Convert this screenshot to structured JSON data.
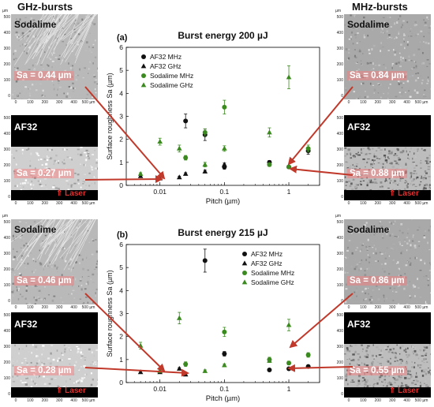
{
  "headers": {
    "left": "GHz-bursts",
    "right": "MHz-bursts"
  },
  "micro_units": {
    "unit": "µm",
    "ticks": [
      "0",
      "100",
      "200",
      "300",
      "400",
      "500 µm"
    ],
    "y_ticks": [
      "500",
      "400",
      "300",
      "200",
      "100",
      "0"
    ]
  },
  "micrographs": [
    {
      "id": "ghz-top-soda",
      "material": "Sodalime",
      "sa": "Sa = 0.44 µm",
      "laser": ""
    },
    {
      "id": "ghz-top-af32",
      "material": "AF32",
      "sa": "Sa = 0.27 µm",
      "laser": "Laser"
    },
    {
      "id": "mhz-top-soda",
      "material": "Sodalime",
      "sa": "Sa = 0.84 µm",
      "laser": ""
    },
    {
      "id": "mhz-top-af32",
      "material": "AF32",
      "sa": "Sa = 0.88 µm",
      "laser": "Laser"
    },
    {
      "id": "ghz-bot-soda",
      "material": "Sodalime",
      "sa": "Sa = 0.46 µm",
      "laser": ""
    },
    {
      "id": "ghz-bot-af32",
      "material": "AF32",
      "sa": "Sa = 0.28 µm",
      "laser": "Laser"
    },
    {
      "id": "mhz-bot-soda",
      "material": "Sodalime",
      "sa": "Sa = 0.86 µm",
      "laser": ""
    },
    {
      "id": "mhz-bot-af32",
      "material": "AF32",
      "sa": "Sa = 0.55 µm",
      "laser": "Laser"
    }
  ],
  "colors": {
    "af32": "#111111",
    "sodalime": "#3b8a1f",
    "arrow": "#c0392b",
    "sa_bg": "#ff7a7a"
  },
  "chart_data": [
    {
      "type": "scatter",
      "panel_label": "(a)",
      "title": "Burst energy 200 µJ",
      "xlabel": "Pitch (µm)",
      "ylabel": "Surface roughness Sa (µm)",
      "xscale": "log",
      "xlim": [
        0.003,
        3
      ],
      "ylim": [
        0,
        6
      ],
      "xticks": [
        "0.01",
        "0.1",
        "1"
      ],
      "yticks": [
        "0",
        "1",
        "2",
        "3",
        "4",
        "5",
        "6"
      ],
      "legend_position": "top-left",
      "series": [
        {
          "name": "AF32 MHz",
          "marker": "circle",
          "color": "#111111",
          "points": [
            [
              0.025,
              2.8,
              0.3
            ],
            [
              0.05,
              2.2,
              0.25
            ],
            [
              0.1,
              0.8,
              0.1
            ],
            [
              0.5,
              1.0,
              0.08
            ],
            [
              1,
              0.8,
              0.06
            ],
            [
              2,
              1.5,
              0.15
            ]
          ]
        },
        {
          "name": "AF32 GHz",
          "marker": "triangle",
          "color": "#111111",
          "points": [
            [
              0.005,
              0.4,
              0.05
            ],
            [
              0.01,
              0.3,
              0.04
            ],
            [
              0.02,
              0.35,
              0.05
            ],
            [
              0.025,
              0.5,
              0.05
            ],
            [
              0.05,
              0.6,
              0.06
            ],
            [
              0.1,
              0.9,
              0.07
            ]
          ]
        },
        {
          "name": "Sodalime MHz",
          "marker": "circle",
          "color": "#3b8a1f",
          "points": [
            [
              0.025,
              1.2,
              0.1
            ],
            [
              0.05,
              2.3,
              0.15
            ],
            [
              0.1,
              3.4,
              0.3
            ],
            [
              0.5,
              0.9,
              0.08
            ],
            [
              1,
              0.8,
              0.05
            ],
            [
              2,
              1.6,
              0.15
            ]
          ]
        },
        {
          "name": "Sodalime GHz",
          "marker": "triangle",
          "color": "#3b8a1f",
          "points": [
            [
              0.005,
              0.5,
              0.05
            ],
            [
              0.01,
              1.9,
              0.15
            ],
            [
              0.02,
              1.6,
              0.15
            ],
            [
              0.05,
              0.9,
              0.1
            ],
            [
              0.1,
              1.6,
              0.12
            ],
            [
              0.5,
              2.3,
              0.2
            ],
            [
              1,
              4.7,
              0.5
            ]
          ]
        }
      ]
    },
    {
      "type": "scatter",
      "panel_label": "(b)",
      "title": "Burst energy 215 µJ",
      "xlabel": "Pitch (µm)",
      "ylabel": "Surface roughness Sa (µm)",
      "xscale": "log",
      "xlim": [
        0.003,
        3
      ],
      "ylim": [
        0,
        6
      ],
      "xticks": [
        "0.01",
        "0.1",
        "1"
      ],
      "yticks": [
        "0",
        "1",
        "2",
        "3",
        "4",
        "5",
        "6"
      ],
      "legend_position": "top-right",
      "series": [
        {
          "name": "AF32 MHz",
          "marker": "circle",
          "color": "#111111",
          "points": [
            [
              0.05,
              5.3,
              0.5
            ],
            [
              0.1,
              1.25,
              0.1
            ],
            [
              0.5,
              0.55,
              0.05
            ],
            [
              1,
              0.6,
              0.05
            ],
            [
              2,
              0.7,
              0.05
            ]
          ]
        },
        {
          "name": "AF32 GHz",
          "marker": "triangle",
          "color": "#111111",
          "points": [
            [
              0.005,
              0.45,
              0.05
            ],
            [
              0.01,
              0.45,
              0.05
            ],
            [
              0.02,
              0.6,
              0.05
            ],
            [
              0.025,
              0.35,
              0.05
            ]
          ]
        },
        {
          "name": "Sodalime MHz",
          "marker": "circle",
          "color": "#3b8a1f",
          "points": [
            [
              0.025,
              0.8,
              0.1
            ],
            [
              0.1,
              2.2,
              0.2
            ],
            [
              0.5,
              1.0,
              0.1
            ],
            [
              1,
              0.85,
              0.08
            ],
            [
              2,
              1.2,
              0.1
            ]
          ]
        },
        {
          "name": "Sodalime GHz",
          "marker": "triangle",
          "color": "#3b8a1f",
          "points": [
            [
              0.005,
              1.6,
              0.15
            ],
            [
              0.01,
              0.5,
              0.05
            ],
            [
              0.02,
              2.8,
              0.25
            ],
            [
              0.05,
              0.5,
              0.05
            ],
            [
              0.1,
              0.75,
              0.06
            ],
            [
              0.5,
              0.95,
              0.08
            ],
            [
              1,
              2.5,
              0.25
            ]
          ]
        }
      ]
    }
  ]
}
